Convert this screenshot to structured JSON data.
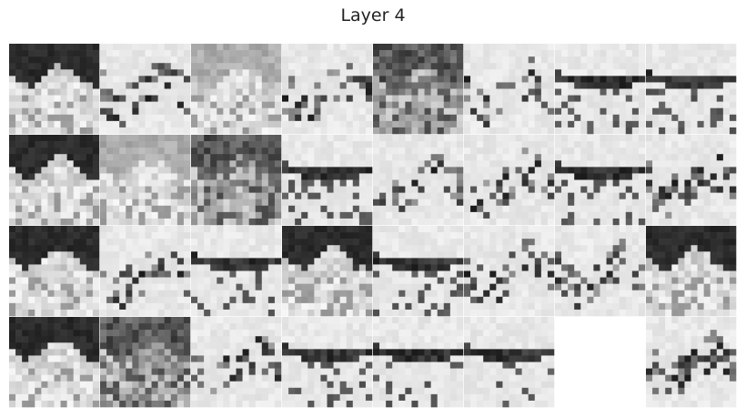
{
  "title": "Layer 4"
}
